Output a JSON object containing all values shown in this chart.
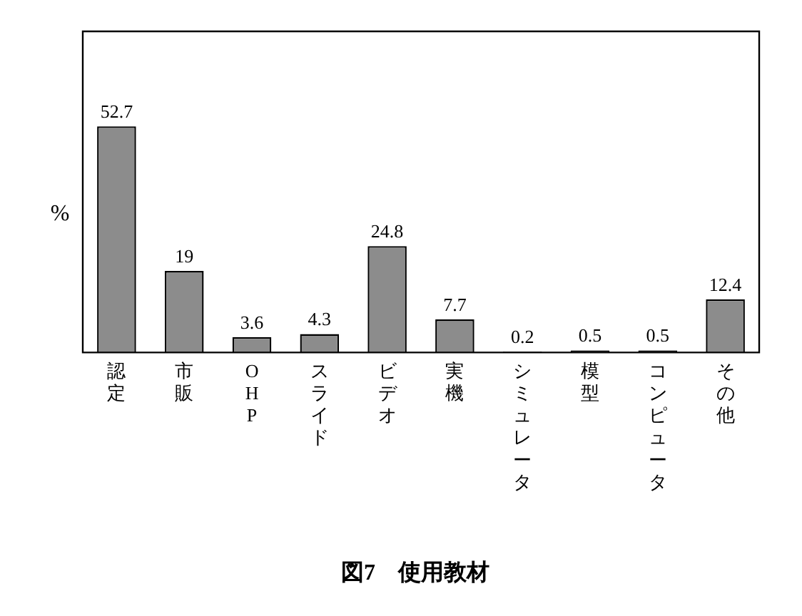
{
  "chart_data": {
    "type": "bar",
    "title": "図7　使用教材",
    "ylabel": "%",
    "categories": [
      "認定",
      "市販",
      "OHP",
      "スライド",
      "ビデオ",
      "実機",
      "シミュレータ",
      "模型",
      "コンピュータ",
      "その他"
    ],
    "values": [
      52.7,
      19,
      3.6,
      4.3,
      24.8,
      7.7,
      0.2,
      0.5,
      0.5,
      12.4
    ],
    "color": "#8c8c8c",
    "data_labels": true,
    "grid": false
  }
}
